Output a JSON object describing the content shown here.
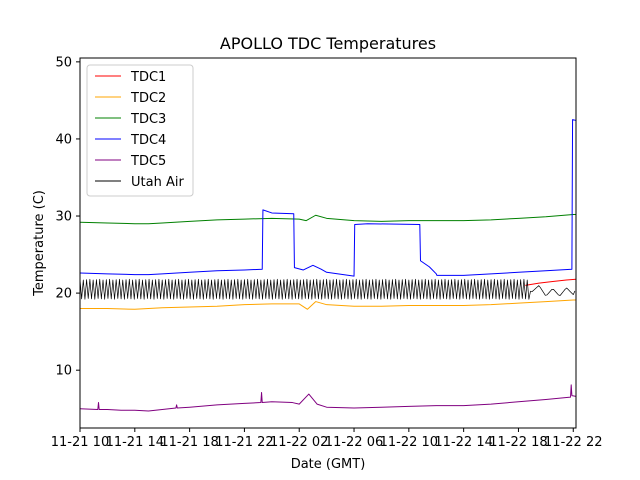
{
  "chart_data": {
    "type": "line",
    "title": "APOLLO TDC Temperatures",
    "xlabel": "Date (GMT)",
    "ylabel": "Temperature (C)",
    "xlim": [
      0,
      36.2
    ],
    "ylim": [
      2.5,
      50.5
    ],
    "x_unit": "hours since 11-21 10:00",
    "yticks": [
      10,
      20,
      30,
      40,
      50
    ],
    "xticks": [
      {
        "x": 0,
        "label": "11-21 10"
      },
      {
        "x": 4,
        "label": "11-21 14"
      },
      {
        "x": 8,
        "label": "11-21 18"
      },
      {
        "x": 12,
        "label": "11-21 22"
      },
      {
        "x": 16,
        "label": "11-22 02"
      },
      {
        "x": 20,
        "label": "11-22 06"
      },
      {
        "x": 24,
        "label": "11-22 10"
      },
      {
        "x": 28,
        "label": "11-22 14"
      },
      {
        "x": 32,
        "label": "11-22 18"
      },
      {
        "x": 36,
        "label": "11-22 22"
      }
    ],
    "legend_position": "top-left",
    "series": [
      {
        "name": "TDC1",
        "color": "#ff0000",
        "x": [
          32.5,
          33.5,
          34.5,
          35.5,
          36.2
        ],
        "y": [
          21.0,
          21.3,
          21.5,
          21.7,
          21.8
        ]
      },
      {
        "name": "TDC2",
        "color": "#ffa500",
        "x": [
          0,
          2,
          4,
          5,
          6,
          8,
          10,
          12,
          14,
          16.0,
          16.6,
          17.2,
          18,
          20,
          22,
          24,
          26,
          28,
          30,
          32,
          34,
          36,
          36.2
        ],
        "y": [
          18.0,
          18.0,
          17.9,
          18.0,
          18.1,
          18.2,
          18.3,
          18.5,
          18.6,
          18.6,
          17.9,
          18.9,
          18.5,
          18.3,
          18.3,
          18.4,
          18.4,
          18.4,
          18.5,
          18.7,
          18.9,
          19.1,
          19.1
        ]
      },
      {
        "name": "TDC3",
        "color": "#008000",
        "x": [
          0,
          2,
          4,
          5,
          6,
          8,
          10,
          12,
          14,
          16.0,
          16.5,
          17.2,
          18,
          20,
          22,
          24,
          26,
          28,
          30,
          32,
          34,
          36,
          36.2
        ],
        "y": [
          29.2,
          29.1,
          29.0,
          29.0,
          29.1,
          29.3,
          29.5,
          29.6,
          29.7,
          29.6,
          29.4,
          30.1,
          29.7,
          29.4,
          29.3,
          29.4,
          29.4,
          29.4,
          29.5,
          29.7,
          29.9,
          30.2,
          30.2
        ]
      },
      {
        "name": "TDC4",
        "color": "#0000ff",
        "x": [
          0,
          2,
          4,
          5,
          6,
          8,
          10,
          12,
          13.3,
          13.35,
          14,
          15.6,
          15.65,
          16.3,
          17.0,
          17.6,
          18,
          20.0,
          20.05,
          21,
          24.8,
          24.85,
          25.5,
          26.0,
          26.05,
          28,
          30,
          32,
          34,
          35.9,
          35.95,
          36.2
        ],
        "y": [
          22.6,
          22.5,
          22.4,
          22.4,
          22.5,
          22.7,
          22.9,
          23.0,
          23.1,
          30.8,
          30.4,
          30.3,
          23.3,
          23.0,
          23.6,
          23.1,
          22.7,
          22.2,
          28.9,
          29.0,
          28.9,
          24.2,
          23.4,
          22.5,
          22.3,
          22.3,
          22.5,
          22.7,
          22.9,
          23.1,
          42.5,
          42.4
        ]
      },
      {
        "name": "TDC5",
        "color": "#800080",
        "x": [
          0,
          1.3,
          1.35,
          1.4,
          2,
          3,
          4,
          5,
          6,
          7.0,
          7.05,
          7.1,
          8,
          10,
          12,
          13.2,
          13.25,
          13.3,
          14,
          15.5,
          16.0,
          16.7,
          17.3,
          18,
          20,
          22,
          24,
          26,
          28,
          30,
          32,
          34,
          35.8,
          35.85,
          35.9,
          36.2
        ],
        "y": [
          5.0,
          4.9,
          5.8,
          4.9,
          4.9,
          4.8,
          4.8,
          4.7,
          4.9,
          5.1,
          5.5,
          5.1,
          5.2,
          5.5,
          5.7,
          5.8,
          7.1,
          5.8,
          5.9,
          5.8,
          5.6,
          6.9,
          5.6,
          5.2,
          5.1,
          5.2,
          5.3,
          5.4,
          5.4,
          5.6,
          5.9,
          6.2,
          6.5,
          8.1,
          6.7,
          6.6
        ]
      },
      {
        "name": "Utah Air",
        "color": "#000000",
        "oscillation_band": [
          19.2,
          21.8
        ],
        "x": [
          0,
          8,
          15.3,
          15.8,
          16.3,
          16.6,
          17,
          20,
          24,
          28,
          32,
          33.0,
          33.5,
          34,
          34.5,
          35,
          35.5,
          36.0,
          36.2
        ],
        "y": [
          20.5,
          20.4,
          20.3,
          21.0,
          19.0,
          20.1,
          21.5,
          20.6,
          20.4,
          20.5,
          20.6,
          20.2,
          21.0,
          19.6,
          20.6,
          19.6,
          20.7,
          19.8,
          20.6
        ]
      }
    ]
  }
}
